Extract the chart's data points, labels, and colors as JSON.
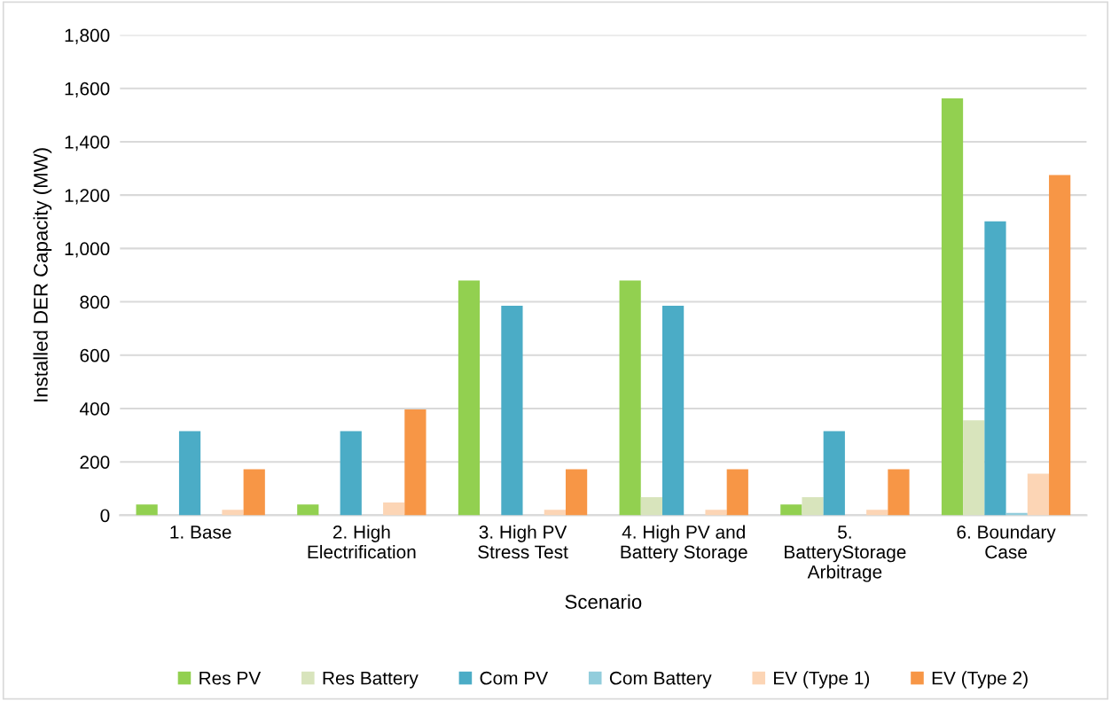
{
  "chart_data": {
    "type": "bar",
    "xlabel": "Scenario",
    "ylabel": "Installed DER Capacity (MW)",
    "categories": [
      "1. Base",
      "2. High\nElectrification",
      "3. High PV\nStress Test",
      "4. High PV and\nBattery Storage",
      "5.\nBatteryStorage\nArbitrage",
      "6. Boundary\nCase"
    ],
    "series": [
      {
        "name": "Res PV",
        "color": "#92d050",
        "values": [
          40,
          40,
          880,
          880,
          40,
          1563
        ]
      },
      {
        "name": "Res Battery",
        "color": "#d8e4bc",
        "values": [
          0,
          0,
          0,
          68,
          68,
          356
        ]
      },
      {
        "name": "Com PV",
        "color": "#4bacc6",
        "values": [
          315,
          315,
          785,
          785,
          315,
          1102
        ]
      },
      {
        "name": "Com Battery",
        "color": "#92cddc",
        "values": [
          0,
          0,
          0,
          0,
          0,
          9
        ]
      },
      {
        "name": "EV (Type 1)",
        "color": "#fcd5b5",
        "values": [
          20,
          48,
          20,
          20,
          20,
          156
        ]
      },
      {
        "name": "EV (Type 2)",
        "color": "#f79646",
        "values": [
          172,
          397,
          172,
          172,
          172,
          1275
        ]
      }
    ],
    "ylim": [
      0,
      1800
    ],
    "yticks": [
      {
        "value": 0,
        "label": "0"
      },
      {
        "value": 200,
        "label": "200"
      },
      {
        "value": 400,
        "label": "400"
      },
      {
        "value": 600,
        "label": "600"
      },
      {
        "value": 800,
        "label": "800"
      },
      {
        "value": 1000,
        "label": "1,000"
      },
      {
        "value": 1200,
        "label": "1,200"
      },
      {
        "value": 1400,
        "label": "1,400"
      },
      {
        "value": 1600,
        "label": "1,600"
      },
      {
        "value": 1800,
        "label": "1,800"
      }
    ],
    "grid": "y",
    "legend": "bottom"
  }
}
